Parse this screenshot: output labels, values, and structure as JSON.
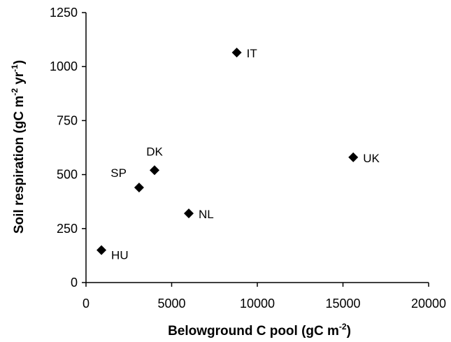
{
  "chart_data": {
    "type": "scatter",
    "title": "",
    "xlabel": {
      "main": "Belowground C pool (gC m",
      "sup": "-2",
      "tail": ")"
    },
    "ylabel": {
      "part1": "Soil respiration (gC m",
      "sup1": "-2",
      "part2": " yr",
      "sup2": "-1",
      "tail": ")"
    },
    "xlim": [
      0,
      20000
    ],
    "ylim": [
      0,
      1250
    ],
    "x_ticks": [
      0,
      5000,
      10000,
      15000,
      20000
    ],
    "x_tick_labels": [
      "0",
      "5000",
      "10000",
      "15000",
      "20000"
    ],
    "y_ticks": [
      0,
      250,
      500,
      750,
      1000,
      1250
    ],
    "y_tick_labels": [
      "0",
      "250",
      "500",
      "750",
      "1000",
      "1250"
    ],
    "grid": false,
    "marker": "diamond",
    "marker_color": "#000000",
    "points": [
      {
        "label": "IT",
        "x": 8800,
        "y": 1065,
        "label_pos": "right"
      },
      {
        "label": "UK",
        "x": 15600,
        "y": 580,
        "label_pos": "right"
      },
      {
        "label": "DK",
        "x": 4000,
        "y": 520,
        "label_pos": "above"
      },
      {
        "label": "SP",
        "x": 3100,
        "y": 440,
        "label_pos": "above-left"
      },
      {
        "label": "NL",
        "x": 6000,
        "y": 320,
        "label_pos": "right"
      },
      {
        "label": "HU",
        "x": 900,
        "y": 150,
        "label_pos": "below-right"
      }
    ]
  }
}
